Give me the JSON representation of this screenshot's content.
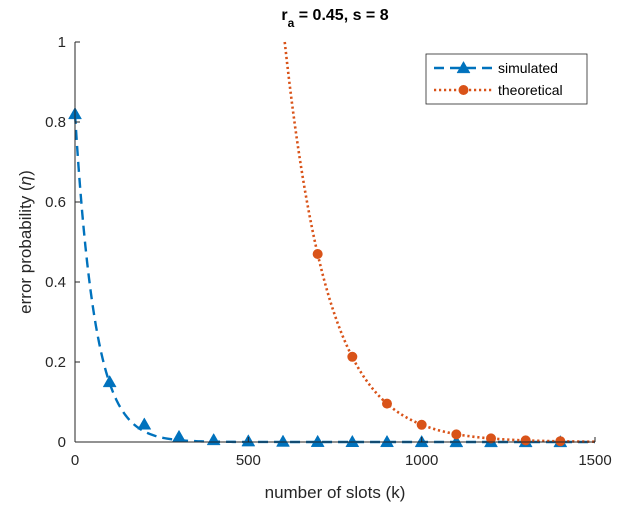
{
  "chart_data": {
    "type": "line",
    "title_main": "r",
    "title_sub": "a",
    "title_rest": " = 0.45, s = 8",
    "xlabel": "number of slots (k)",
    "ylabel_text": "error probability (",
    "ylabel_symbol": "η",
    "ylabel_close": ")",
    "xlim": [
      0,
      1500
    ],
    "ylim": [
      0,
      1
    ],
    "xticks": [
      0,
      500,
      1000,
      1500
    ],
    "yticks": [
      0,
      0.2,
      0.4,
      0.6,
      0.8,
      1
    ],
    "xtick_labels": [
      "0",
      "500",
      "1000",
      "1500"
    ],
    "ytick_labels": [
      "0",
      "0.2",
      "0.4",
      "0.6",
      "0.8",
      "1"
    ],
    "grid": false,
    "legend_position": "top-right",
    "series": [
      {
        "name": "simulated",
        "color": "#0072BD",
        "line_style": "dashed",
        "marker": "triangle",
        "marker_points": [
          [
            0,
            0.82
          ],
          [
            100,
            0.15
          ],
          [
            200,
            0.044
          ],
          [
            300,
            0.013
          ],
          [
            400,
            0.005
          ],
          [
            500,
            0.002
          ],
          [
            600,
            0.001
          ],
          [
            700,
            0.0005
          ],
          [
            800,
            0.0003
          ],
          [
            900,
            0.0002
          ],
          [
            1000,
            0.0001
          ],
          [
            1100,
            0.0
          ],
          [
            1200,
            0.0
          ],
          [
            1300,
            0.0
          ],
          [
            1400,
            0.0
          ]
        ],
        "curve": {
          "kind": "exponential",
          "a": 0.82,
          "b": 0.0172,
          "x_start": 0,
          "x_end": 1500
        }
      },
      {
        "name": "theoretical",
        "color": "#D95319",
        "line_style": "dotted",
        "marker": "circle",
        "marker_points": [
          [
            700,
            0.47
          ],
          [
            800,
            0.213
          ],
          [
            900,
            0.096
          ],
          [
            1000,
            0.043
          ],
          [
            1100,
            0.019
          ],
          [
            1200,
            0.009
          ],
          [
            1300,
            0.004
          ],
          [
            1400,
            0.002
          ]
        ],
        "curve": {
          "kind": "exponential",
          "a": 0.47,
          "b": 0.00795,
          "x0": 700,
          "x_start": 605,
          "x_end": 1500
        }
      }
    ]
  }
}
